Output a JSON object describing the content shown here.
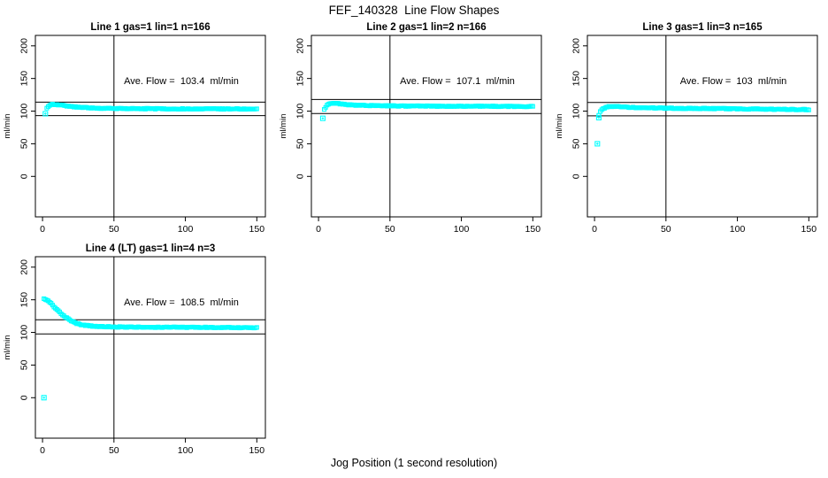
{
  "page": {
    "title": "FEF_140328  Line Flow Shapes",
    "xlabel": "Jog Position (1 second resolution)",
    "background_color": "#FFFFFF",
    "line_color": "#000000"
  },
  "chart_data": [
    {
      "type": "scatter",
      "title": "Line 1 gas=1 lin=1 n=166",
      "annotation": "Ave. Flow =  103.4  ml/min",
      "ave_flow": 103.4,
      "n": 166,
      "ylabel": "ml/min",
      "x_ticks": [
        0,
        50,
        100,
        150
      ],
      "y_ticks": [
        0,
        50,
        100,
        150,
        200
      ],
      "xlim": [
        -5,
        156
      ],
      "ylim": [
        -62,
        216
      ],
      "marker_color": "#00FFFF",
      "vline_x": 50,
      "hlines": [
        113.7,
        93.1
      ],
      "outliers": [
        [
          2,
          96
        ]
      ],
      "profile": [
        [
          3,
          104
        ],
        [
          4,
          107
        ],
        [
          5,
          109
        ],
        [
          6,
          110
        ],
        [
          8,
          110.5
        ],
        [
          10,
          110
        ],
        [
          12,
          109.5
        ],
        [
          15,
          108.5
        ],
        [
          18,
          107.5
        ],
        [
          21,
          107
        ],
        [
          25,
          106
        ],
        [
          30,
          105.3
        ],
        [
          35,
          104.8
        ],
        [
          40,
          104.4
        ],
        [
          50,
          104
        ],
        [
          60,
          103.8
        ],
        [
          80,
          103.6
        ],
        [
          100,
          103.5
        ],
        [
          120,
          103.4
        ],
        [
          150,
          103.3
        ]
      ]
    },
    {
      "type": "scatter",
      "title": "Line 2 gas=1 lin=2 n=166",
      "annotation": "Ave. Flow =  107.1  ml/min",
      "ave_flow": 107.1,
      "n": 166,
      "ylabel": "ml/min",
      "x_ticks": [
        0,
        50,
        100,
        150
      ],
      "y_ticks": [
        0,
        50,
        100,
        150,
        200
      ],
      "xlim": [
        -5,
        156
      ],
      "ylim": [
        -62,
        216
      ],
      "marker_color": "#00FFFF",
      "vline_x": 50,
      "hlines": [
        117.8,
        96.4
      ],
      "outliers": [
        [
          3,
          89
        ]
      ],
      "profile": [
        [
          4,
          103
        ],
        [
          5,
          106
        ],
        [
          6,
          109
        ],
        [
          8,
          111.5
        ],
        [
          10,
          112
        ],
        [
          13,
          111.5
        ],
        [
          16,
          111
        ],
        [
          20,
          110
        ],
        [
          25,
          109.3
        ],
        [
          30,
          108.8
        ],
        [
          40,
          108.3
        ],
        [
          50,
          108
        ],
        [
          60,
          107.8
        ],
        [
          80,
          107.6
        ],
        [
          100,
          107.5
        ],
        [
          120,
          107.4
        ],
        [
          150,
          107.2
        ]
      ]
    },
    {
      "type": "scatter",
      "title": "Line 3 gas=1 lin=3 n=165",
      "annotation": "Ave. Flow =  103  ml/min",
      "ave_flow": 103,
      "n": 165,
      "ylabel": "ml/min",
      "x_ticks": [
        0,
        50,
        100,
        150
      ],
      "y_ticks": [
        0,
        50,
        100,
        150,
        200
      ],
      "xlim": [
        -5,
        156
      ],
      "ylim": [
        -62,
        216
      ],
      "marker_color": "#00FFFF",
      "vline_x": 50,
      "hlines": [
        113.3,
        92.7
      ],
      "outliers": [
        [
          2,
          50
        ],
        [
          3,
          90
        ]
      ],
      "profile": [
        [
          3,
          93
        ],
        [
          4,
          99
        ],
        [
          5,
          102
        ],
        [
          7,
          105
        ],
        [
          9,
          106.5
        ],
        [
          12,
          107
        ],
        [
          16,
          106.8
        ],
        [
          20,
          106.3
        ],
        [
          25,
          105.8
        ],
        [
          30,
          105.4
        ],
        [
          40,
          105
        ],
        [
          50,
          104.6
        ],
        [
          60,
          104.3
        ],
        [
          80,
          104
        ],
        [
          100,
          103.6
        ],
        [
          120,
          103
        ],
        [
          135,
          102.7
        ],
        [
          150,
          102.3
        ]
      ]
    },
    {
      "type": "scatter",
      "title": "Line 4 (LT) gas=1 lin=4 n=3",
      "annotation": "Ave. Flow =  108.5  ml/min",
      "ave_flow": 108.5,
      "n": 3,
      "ylabel": "ml/min",
      "x_ticks": [
        0,
        50,
        100,
        150
      ],
      "y_ticks": [
        0,
        50,
        100,
        150,
        200
      ],
      "xlim": [
        -5,
        156
      ],
      "ylim": [
        -62,
        216
      ],
      "marker_color": "#00FFFF",
      "vline_x": 50,
      "hlines": [
        119.4,
        97.7
      ],
      "outliers": [
        [
          1,
          0
        ]
      ],
      "profile": [
        [
          1,
          151
        ],
        [
          2,
          151
        ],
        [
          3,
          150
        ],
        [
          4,
          148.5
        ],
        [
          5,
          146.5
        ],
        [
          6,
          144.5
        ],
        [
          7,
          142
        ],
        [
          8,
          139.5
        ],
        [
          9,
          137
        ],
        [
          10,
          135
        ],
        [
          11,
          133
        ],
        [
          12,
          131
        ],
        [
          13,
          129
        ],
        [
          14,
          127
        ],
        [
          15,
          125
        ],
        [
          16,
          123.5
        ],
        [
          17,
          122
        ],
        [
          18,
          120.5
        ],
        [
          19,
          119
        ],
        [
          20,
          117.5
        ],
        [
          22,
          115.5
        ],
        [
          24,
          113.8
        ],
        [
          26,
          112.5
        ],
        [
          28,
          111.5
        ],
        [
          30,
          110.8
        ],
        [
          33,
          110
        ],
        [
          36,
          109.5
        ],
        [
          40,
          109
        ],
        [
          45,
          108.7
        ],
        [
          50,
          108.5
        ],
        [
          60,
          108.2
        ],
        [
          70,
          108
        ],
        [
          85,
          107.9
        ],
        [
          100,
          107.8
        ],
        [
          115,
          107.7
        ],
        [
          130,
          107.5
        ],
        [
          150,
          107.2
        ]
      ]
    }
  ]
}
